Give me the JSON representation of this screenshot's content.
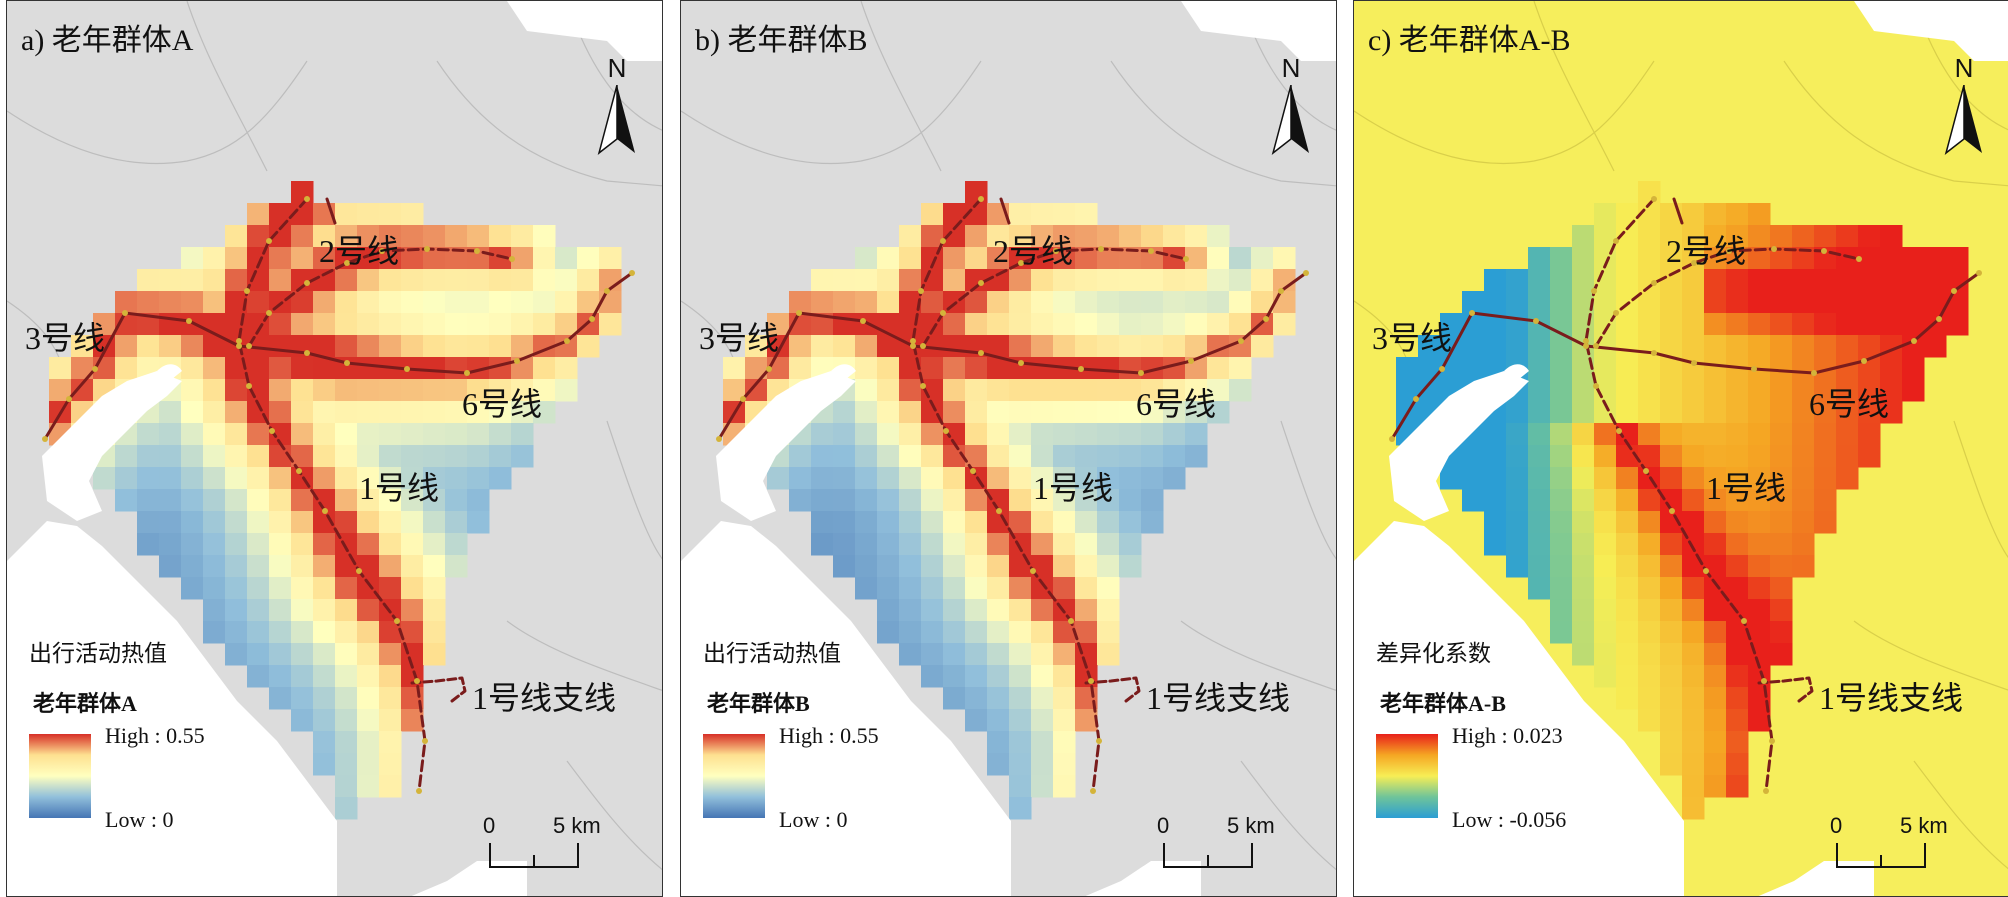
{
  "panels": [
    {
      "title": "a) 老年群体A",
      "mode": "ab",
      "legend": {
        "title": "出行活动热值",
        "subtitle_prefix": "老年群体",
        "subtitle_suffix": "A",
        "high": "High : 0.55",
        "low": "Low : 0"
      },
      "ramp_colors": [
        "#d73027",
        "#fee090",
        "#ffffbf",
        "#91bfdb",
        "#4575b4"
      ]
    },
    {
      "title": "b) 老年群体B",
      "mode": "ab",
      "legend": {
        "title": "出行活动热值",
        "subtitle_prefix": "老年群体",
        "subtitle_suffix": "B",
        "high": "High : 0.55",
        "low": "Low : 0"
      },
      "ramp_colors": [
        "#d73027",
        "#fee090",
        "#ffffbf",
        "#91bfdb",
        "#4575b4"
      ]
    },
    {
      "title": "c) 老年群体A-B",
      "mode": "diff",
      "legend": {
        "title": "差异化系数",
        "subtitle_prefix": "老年群体",
        "subtitle_suffix": "A-B",
        "high": "High : 0.023",
        "low": "Low : -0.056"
      },
      "ramp_colors": [
        "#e8201b",
        "#f5a623",
        "#f7ee55",
        "#6fc49a",
        "#2b9ed4"
      ]
    }
  ],
  "line_labels": {
    "line1": "1号线",
    "line2": "2号线",
    "line3": "3号线",
    "line6": "6号线",
    "line1_branch": "1号线支线"
  },
  "north_arrow": "N",
  "scale_bar": {
    "zero": "0",
    "five": "5 km"
  },
  "colors": {
    "background_ab": "#dcdcdc",
    "background_diff": "#f6ee5c",
    "water": "#ffffff",
    "metro_line": "#7a1c1c",
    "station": "#d4b43a"
  }
}
